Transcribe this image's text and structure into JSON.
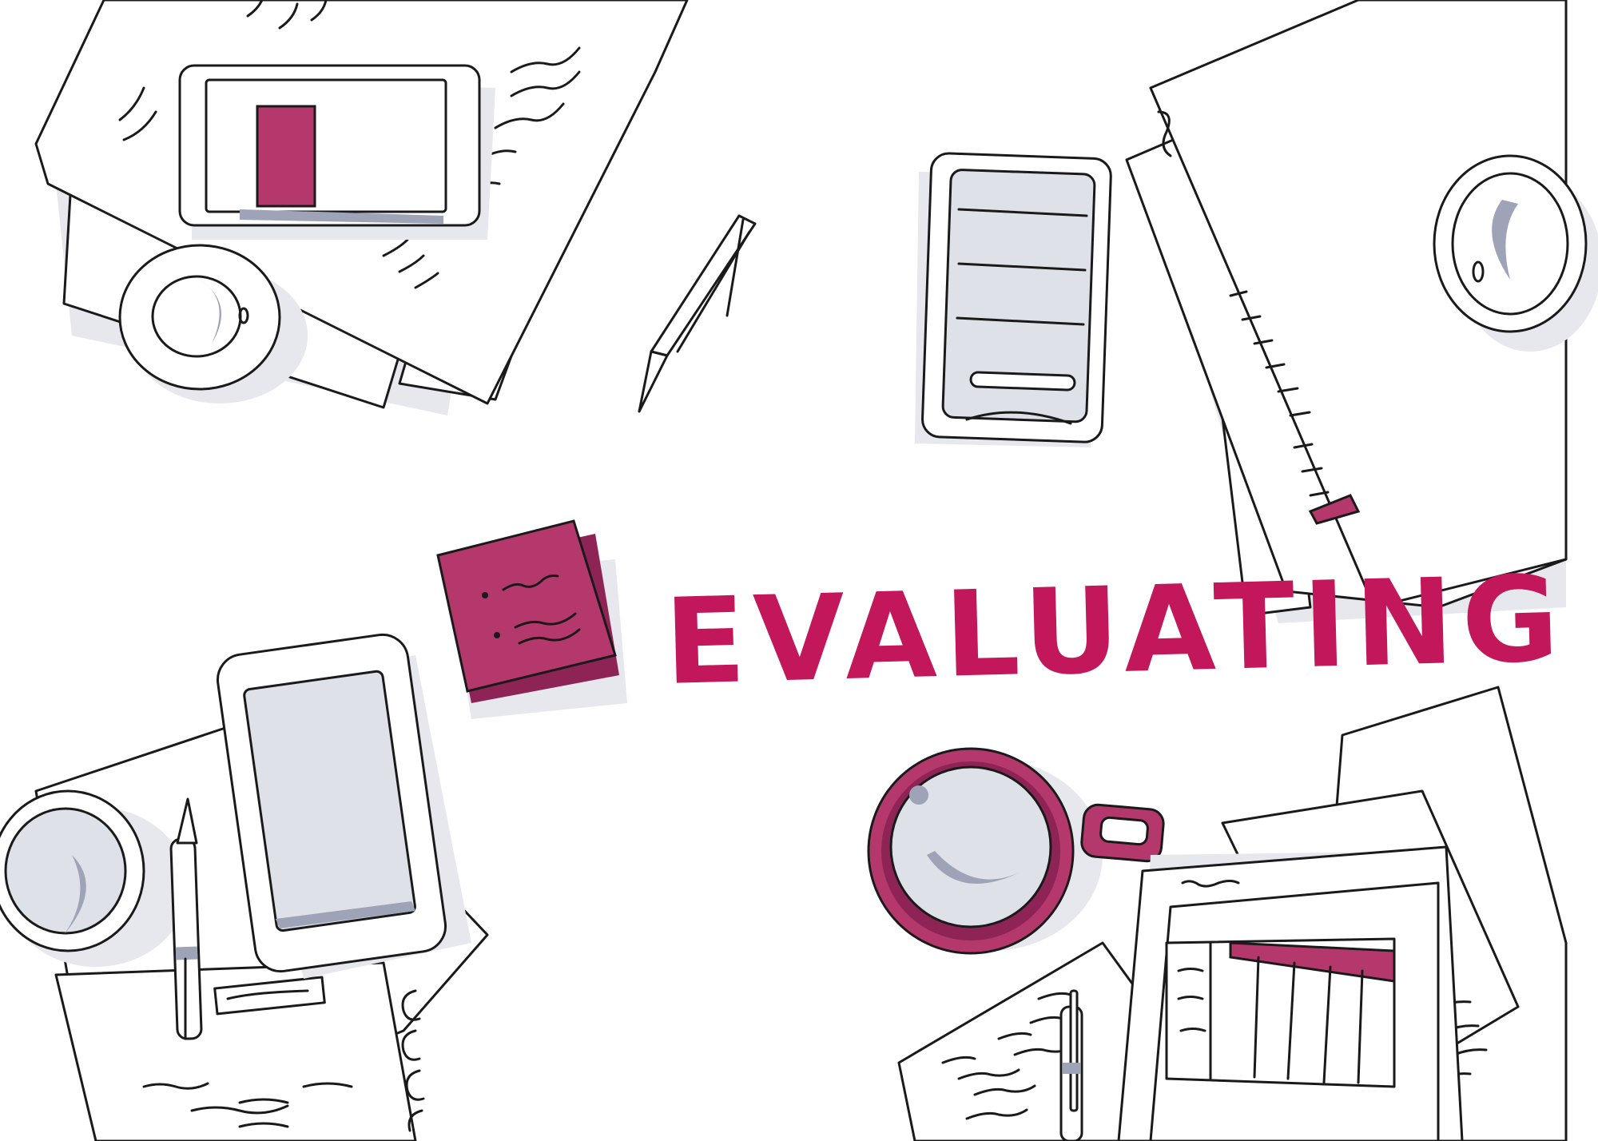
{
  "illustration": {
    "title": "EVALUATING",
    "accent_color": "#c2185b",
    "objects": [
      "paper-stack-icon",
      "tablet-icon",
      "coffee-cup-icon",
      "pen-icon",
      "smartphone-icon",
      "folder-icon",
      "sticky-notes-icon",
      "mug-icon",
      "document-icon"
    ]
  }
}
